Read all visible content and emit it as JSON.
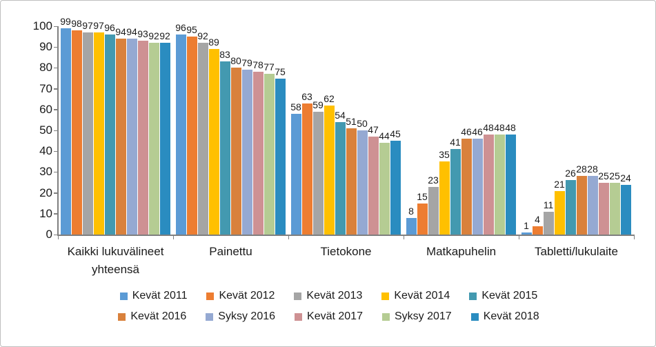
{
  "chart_data": {
    "type": "bar",
    "title": "",
    "xlabel": "",
    "ylabel": "",
    "ylim": [
      0,
      100
    ],
    "yticks": [
      0,
      10,
      20,
      30,
      40,
      50,
      60,
      70,
      80,
      90,
      100
    ],
    "grid": false,
    "legend_position": "bottom",
    "data_labels": true,
    "categories": [
      "Kaikki lukuvälineet yhteensä",
      "Painettu",
      "Tietokone",
      "Matkapuhelin",
      "Tabletti/lukulaite"
    ],
    "series": [
      {
        "name": "Kevät 2011",
        "color": "#5B9BD5",
        "values": [
          99,
          96,
          58,
          8,
          1
        ]
      },
      {
        "name": "Kevät 2012",
        "color": "#ED7D31",
        "values": [
          98,
          95,
          63,
          15,
          4
        ]
      },
      {
        "name": "Kevät 2013",
        "color": "#A5A5A5",
        "values": [
          97,
          92,
          59,
          23,
          11
        ]
      },
      {
        "name": "Kevät 2014",
        "color": "#FFC000",
        "values": [
          97,
          89,
          62,
          35,
          21
        ]
      },
      {
        "name": "Kevät 2015",
        "color": "#4399B0",
        "values": [
          96,
          83,
          54,
          41,
          26
        ]
      },
      {
        "name": "Kevät 2016",
        "color": "#D9813C",
        "values": [
          94,
          80,
          51,
          46,
          28
        ]
      },
      {
        "name": "Syksy 2016",
        "color": "#95A9D2",
        "values": [
          94,
          79,
          50,
          46,
          28
        ]
      },
      {
        "name": "Kevät 2017",
        "color": "#CE9193",
        "values": [
          93,
          78,
          47,
          48,
          25
        ]
      },
      {
        "name": "Syksy 2017",
        "color": "#B5CC93",
        "values": [
          92,
          77,
          44,
          48,
          25
        ]
      },
      {
        "name": "Kevät 2018",
        "color": "#2A8CC0",
        "values": [
          92,
          75,
          45,
          48,
          24
        ]
      }
    ],
    "legend_rows": [
      5,
      5
    ]
  },
  "layout_colors": {
    "axis": "#7f7f7f",
    "text": "#1a1a1a",
    "frame_border": "#bfbfbf",
    "background": "#ffffff"
  }
}
